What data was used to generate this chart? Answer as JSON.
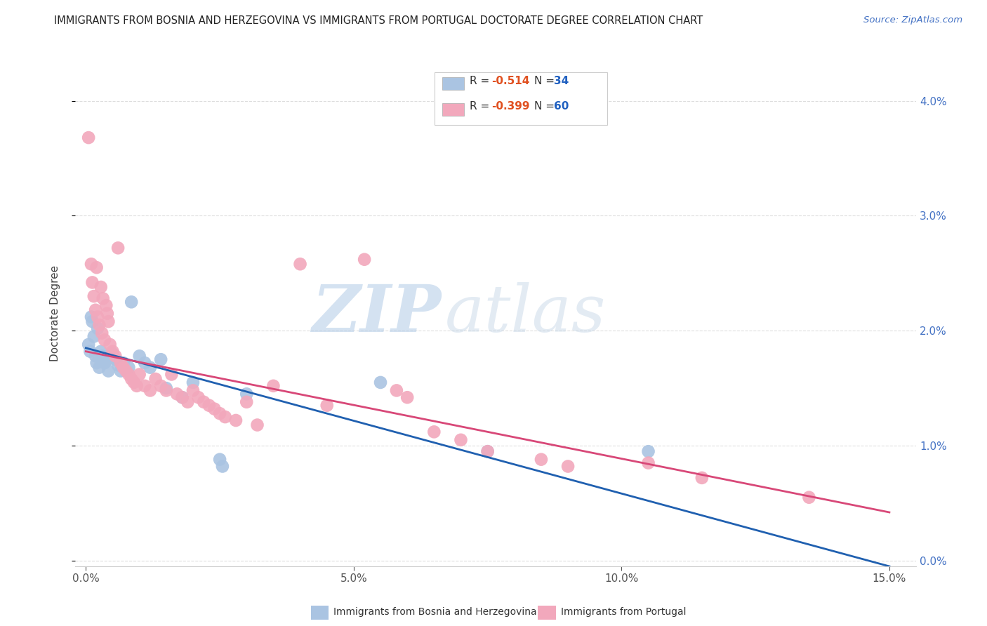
{
  "title": "IMMIGRANTS FROM BOSNIA AND HERZEGOVINA VS IMMIGRANTS FROM PORTUGAL DOCTORATE DEGREE CORRELATION CHART",
  "source": "Source: ZipAtlas.com",
  "xlabel_ticks": [
    "0.0%",
    "5.0%",
    "10.0%",
    "15.0%"
  ],
  "xlabel_tick_vals": [
    0.0,
    5.0,
    10.0,
    15.0
  ],
  "ylabel": "Doctorate Degree",
  "ylabel_ticks": [
    "0.0%",
    "1.0%",
    "2.0%",
    "3.0%",
    "4.0%"
  ],
  "ylabel_tick_vals": [
    0.0,
    1.0,
    2.0,
    3.0,
    4.0
  ],
  "xlim": [
    -0.2,
    15.5
  ],
  "ylim": [
    -0.05,
    4.35
  ],
  "watermark_zip": "ZIP",
  "watermark_atlas": "atlas",
  "legend_blue_label": "Immigrants from Bosnia and Herzegovina",
  "legend_pink_label": "Immigrants from Portugal",
  "legend_blue_R": "R = -0.514",
  "legend_blue_N": "N = 34",
  "legend_pink_R": "R = -0.399",
  "legend_pink_N": "N = 60",
  "blue_color": "#aac4e2",
  "pink_color": "#f2a8bc",
  "blue_line_color": "#2060b0",
  "pink_line_color": "#d84878",
  "blue_scatter": [
    [
      0.05,
      1.88
    ],
    [
      0.08,
      1.82
    ],
    [
      0.1,
      2.12
    ],
    [
      0.12,
      2.08
    ],
    [
      0.15,
      1.95
    ],
    [
      0.18,
      1.78
    ],
    [
      0.2,
      1.72
    ],
    [
      0.22,
      2.02
    ],
    [
      0.25,
      1.68
    ],
    [
      0.28,
      1.82
    ],
    [
      0.3,
      1.78
    ],
    [
      0.35,
      1.72
    ],
    [
      0.4,
      1.75
    ],
    [
      0.42,
      1.65
    ],
    [
      0.5,
      1.8
    ],
    [
      0.55,
      1.75
    ],
    [
      0.6,
      1.7
    ],
    [
      0.65,
      1.65
    ],
    [
      0.7,
      1.72
    ],
    [
      0.8,
      1.68
    ],
    [
      0.85,
      2.25
    ],
    [
      1.0,
      1.78
    ],
    [
      1.1,
      1.72
    ],
    [
      1.2,
      1.68
    ],
    [
      1.4,
      1.75
    ],
    [
      1.5,
      1.5
    ],
    [
      1.8,
      1.42
    ],
    [
      2.0,
      1.55
    ],
    [
      2.5,
      0.88
    ],
    [
      2.55,
      0.82
    ],
    [
      3.0,
      1.45
    ],
    [
      5.5,
      1.55
    ],
    [
      7.5,
      0.95
    ],
    [
      10.5,
      0.95
    ]
  ],
  "pink_scatter": [
    [
      0.05,
      3.68
    ],
    [
      0.1,
      2.58
    ],
    [
      0.12,
      2.42
    ],
    [
      0.15,
      2.3
    ],
    [
      0.18,
      2.18
    ],
    [
      0.2,
      2.55
    ],
    [
      0.22,
      2.12
    ],
    [
      0.25,
      2.05
    ],
    [
      0.28,
      2.38
    ],
    [
      0.3,
      1.98
    ],
    [
      0.32,
      2.28
    ],
    [
      0.35,
      1.92
    ],
    [
      0.38,
      2.22
    ],
    [
      0.4,
      2.15
    ],
    [
      0.42,
      2.08
    ],
    [
      0.45,
      1.88
    ],
    [
      0.5,
      1.82
    ],
    [
      0.55,
      1.78
    ],
    [
      0.6,
      2.72
    ],
    [
      0.65,
      1.72
    ],
    [
      0.7,
      1.68
    ],
    [
      0.75,
      1.65
    ],
    [
      0.8,
      1.62
    ],
    [
      0.85,
      1.58
    ],
    [
      0.9,
      1.55
    ],
    [
      0.95,
      1.52
    ],
    [
      1.0,
      1.62
    ],
    [
      1.1,
      1.52
    ],
    [
      1.2,
      1.48
    ],
    [
      1.3,
      1.58
    ],
    [
      1.4,
      1.52
    ],
    [
      1.5,
      1.48
    ],
    [
      1.6,
      1.62
    ],
    [
      1.7,
      1.45
    ],
    [
      1.8,
      1.42
    ],
    [
      1.9,
      1.38
    ],
    [
      2.0,
      1.48
    ],
    [
      2.1,
      1.42
    ],
    [
      2.2,
      1.38
    ],
    [
      2.3,
      1.35
    ],
    [
      2.4,
      1.32
    ],
    [
      2.5,
      1.28
    ],
    [
      2.6,
      1.25
    ],
    [
      2.8,
      1.22
    ],
    [
      3.0,
      1.38
    ],
    [
      3.2,
      1.18
    ],
    [
      3.5,
      1.52
    ],
    [
      4.0,
      2.58
    ],
    [
      4.5,
      1.35
    ],
    [
      5.2,
      2.62
    ],
    [
      5.8,
      1.48
    ],
    [
      6.0,
      1.42
    ],
    [
      6.5,
      1.12
    ],
    [
      7.0,
      1.05
    ],
    [
      7.5,
      0.95
    ],
    [
      8.5,
      0.88
    ],
    [
      9.0,
      0.82
    ],
    [
      10.5,
      0.85
    ],
    [
      11.5,
      0.72
    ],
    [
      13.5,
      0.55
    ]
  ],
  "blue_line_x": [
    0.0,
    15.0
  ],
  "blue_line_y": [
    1.85,
    -0.05
  ],
  "pink_line_x": [
    0.0,
    15.0
  ],
  "pink_line_y": [
    1.82,
    0.42
  ],
  "grid_color": "#dddddd",
  "background_color": "#ffffff",
  "legend_R_color": "#e05020",
  "legend_N_color": "#2060c0",
  "title_color": "#222222",
  "source_color": "#4472c4",
  "ylabel_color": "#444444",
  "right_tick_color": "#4472c4"
}
